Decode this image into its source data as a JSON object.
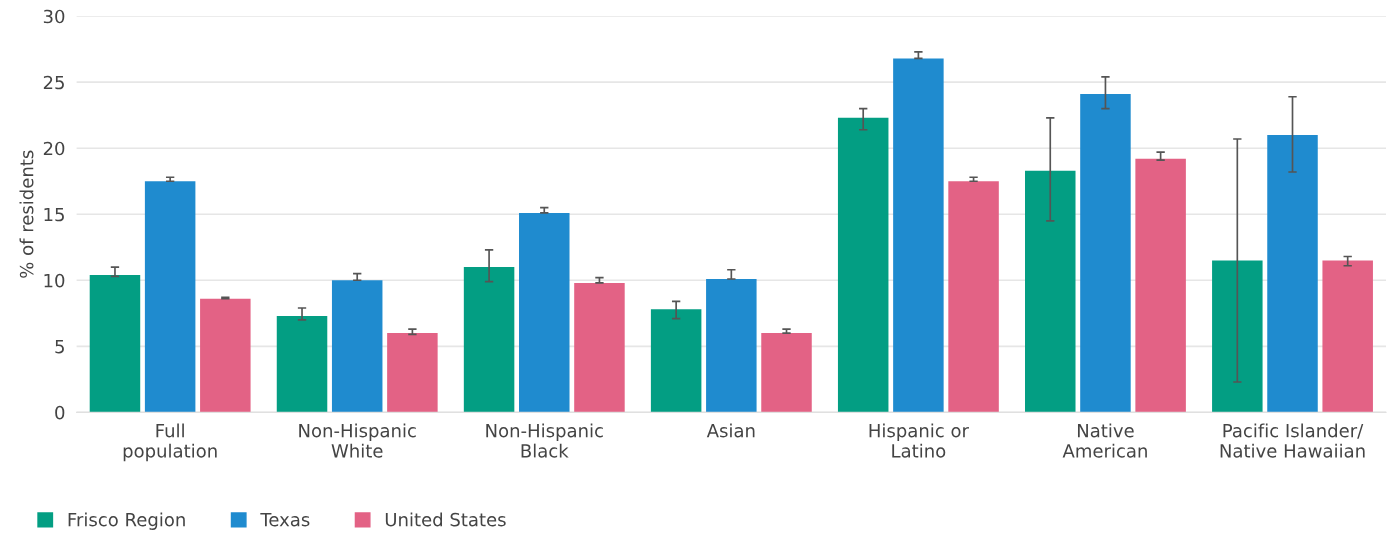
{
  "chart_data": {
    "type": "bar",
    "ylabel": "% of residents",
    "categories": [
      "Full\npopulation",
      "Non-Hispanic\nWhite",
      "Non-Hispanic\nBlack",
      "Asian",
      "Hispanic or\nLatino",
      "Native\nAmerican",
      "Pacific Islander/\nNative Hawaiian"
    ],
    "series": [
      {
        "name": "Frisco Region",
        "color": "#039e83",
        "values": [
          10.4,
          7.3,
          11.0,
          7.8,
          22.3,
          18.3,
          11.5
        ],
        "errors": [
          [
            10.3,
            11.0
          ],
          [
            7.0,
            7.9
          ],
          [
            9.9,
            12.3
          ],
          [
            7.1,
            8.4
          ],
          [
            21.4,
            23.0
          ],
          [
            14.5,
            22.3
          ],
          [
            2.3,
            20.7
          ]
        ]
      },
      {
        "name": "Texas",
        "color": "#1f8bcf",
        "values": [
          17.5,
          10.0,
          15.1,
          10.1,
          26.8,
          24.1,
          21.0
        ],
        "errors": [
          [
            17.5,
            17.8
          ],
          [
            10.0,
            10.5
          ],
          [
            15.1,
            15.5
          ],
          [
            10.1,
            10.8
          ],
          [
            26.8,
            27.3
          ],
          [
            23.0,
            25.4
          ],
          [
            18.2,
            23.9
          ]
        ]
      },
      {
        "name": "United States",
        "color": "#e36285",
        "values": [
          8.6,
          6.0,
          9.8,
          6.0,
          17.5,
          19.2,
          11.5
        ],
        "errors": [
          [
            8.6,
            8.7
          ],
          [
            5.9,
            6.3
          ],
          [
            9.8,
            10.2
          ],
          [
            6.0,
            6.3
          ],
          [
            17.5,
            17.8
          ],
          [
            19.1,
            19.7
          ],
          [
            11.1,
            11.8
          ]
        ]
      }
    ],
    "ylim": [
      0,
      30
    ],
    "yticks": [
      0,
      5,
      10,
      15,
      20,
      25,
      30
    ],
    "grid": "y",
    "legend": "bottom left"
  }
}
